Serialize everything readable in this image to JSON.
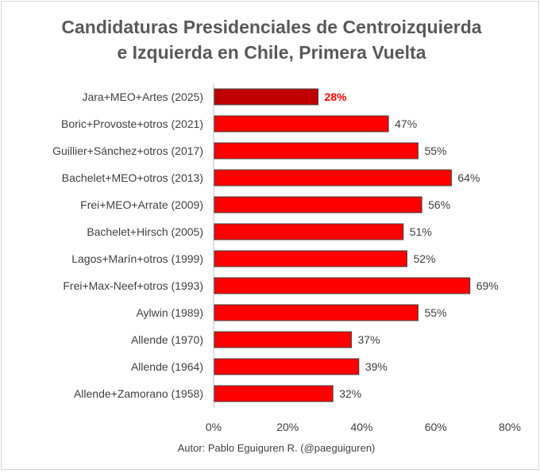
{
  "chart_data": {
    "type": "bar",
    "orientation": "horizontal",
    "title_lines": [
      "Candidaturas Presidenciales de Centroizquierda",
      "e Izquierda en Chile, Primera Vuelta"
    ],
    "categories": [
      "Jara+MEO+Artes (2025)",
      "Boric+Provoste+otros (2021)",
      "Guillier+Sánchez+otros (2017)",
      "Bachelet+MEO+otros (2013)",
      "Frei+MEO+Arrate (2009)",
      "Bachelet+Hirsch (2005)",
      "Lagos+Marín+otros (1999)",
      "Frei+Max-Neef+otros (1993)",
      "Aylwin (1989)",
      "Allende (1970)",
      "Allende (1964)",
      "Allende+Zamorano (1958)"
    ],
    "values": [
      28,
      47,
      55,
      64,
      56,
      51,
      52,
      69,
      55,
      37,
      39,
      32
    ],
    "value_labels": [
      "28%",
      "47%",
      "55%",
      "64%",
      "56%",
      "51%",
      "52%",
      "69%",
      "55%",
      "37%",
      "39%",
      "32%"
    ],
    "highlight_index": 0,
    "xlim": [
      0,
      80
    ],
    "x_ticks": [
      "0%",
      "20%",
      "40%",
      "60%",
      "80%"
    ],
    "colors": {
      "bar": "#ff0000",
      "highlight_bar": "#c00000",
      "highlight_label": "#ff0000",
      "bar_border": "#404040",
      "text": "#404040",
      "title": "#595959"
    },
    "source_note": "Autor: Pablo Eguiguren R. (@paeguiguren)"
  }
}
